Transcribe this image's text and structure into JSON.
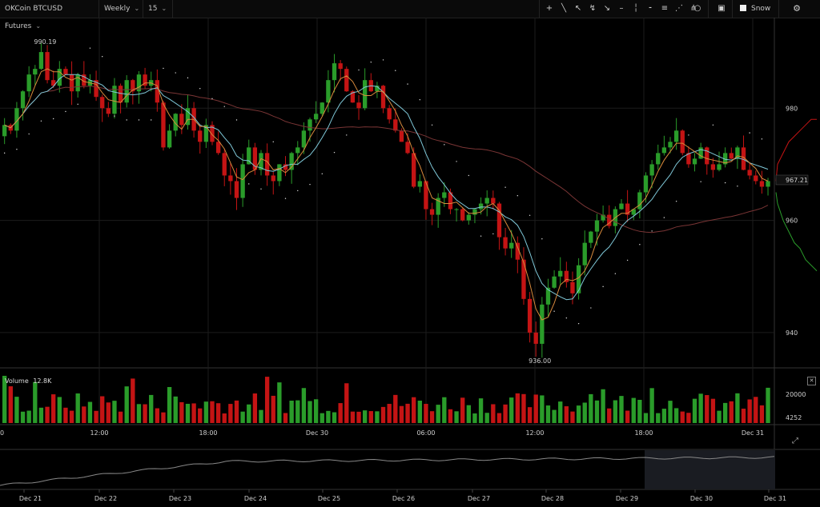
{
  "toolbar": {
    "symbol": "OKCoin BTCUSD Futures",
    "period": "Weekly",
    "interval": "15",
    "snow_label": "Snow"
  },
  "chart_data": {
    "type": "candlestick",
    "price_ticks": [
      "980",
      "967.21",
      "960",
      "940"
    ],
    "current_price": "967.21",
    "high_label": "990.19",
    "low_label": "936.00",
    "ylim": [
      934,
      996
    ],
    "time_ticks": [
      "0",
      "12:00",
      "18:00",
      "Dec 30",
      "06:00",
      "12:00",
      "18:00",
      "Dec 31"
    ],
    "volume": {
      "label": "Volume",
      "value": "12.8K",
      "ticks": [
        "20000",
        "4252"
      ]
    },
    "navigator_ticks": [
      "Dec 21",
      "Dec 22",
      "Dec 23",
      "Dec 24",
      "Dec 25",
      "Dec 26",
      "Dec 27",
      "Dec 28",
      "Dec 29",
      "Dec 30",
      "Dec 31"
    ],
    "colors": {
      "up": "#2a9c2a",
      "down": "#c41414",
      "ma_fast": "#d88a3c",
      "ma_mid": "#7fc8d8",
      "ma_slow": "#7a3535"
    },
    "price_path": [
      975,
      977,
      976,
      980,
      983,
      986,
      987,
      990,
      985,
      984,
      987,
      986,
      983,
      986,
      984,
      985,
      982,
      980,
      979,
      984,
      981,
      985,
      983,
      986,
      984,
      985,
      981,
      973,
      976,
      979,
      977,
      980,
      976,
      974,
      977,
      974,
      972,
      968,
      967,
      964,
      970,
      973,
      969,
      972,
      968,
      967,
      970,
      969,
      972,
      973,
      976,
      978,
      979,
      981,
      985,
      988,
      987,
      983,
      981,
      980,
      985,
      983,
      984,
      980,
      978,
      976,
      974,
      972,
      966,
      967,
      962,
      961,
      964,
      965,
      962,
      962,
      960,
      961,
      962,
      963,
      964,
      963,
      957,
      955,
      956,
      953,
      946,
      940,
      938,
      945,
      948,
      950,
      951,
      949,
      947,
      952,
      956,
      958,
      960,
      961,
      959,
      962,
      963,
      961,
      962,
      965,
      968,
      970,
      972,
      973,
      974,
      976,
      972,
      970,
      971,
      973,
      970,
      969,
      970,
      972,
      971,
      973,
      969,
      968,
      967,
      966,
      967
    ]
  }
}
